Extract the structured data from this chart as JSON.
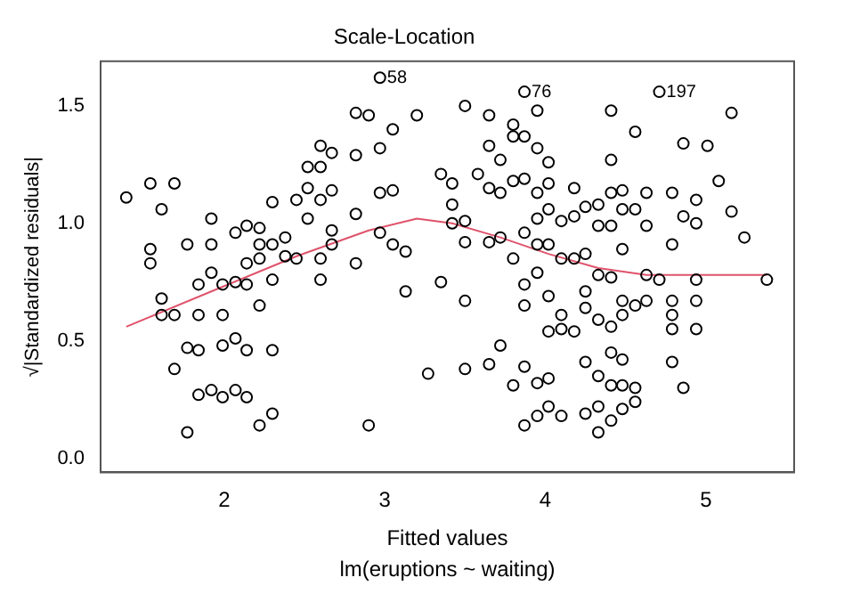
{
  "chart_data": {
    "type": "scatter",
    "title": "Scale-Location",
    "xlabel": "Fitted values",
    "ylabel": "√|Standardized residuals|",
    "xlim": [
      1.23,
      5.55
    ],
    "xticks": [
      2,
      3,
      4,
      5
    ],
    "ylim": [
      -0.06,
      1.69
    ],
    "yticks": [
      {
        "value": 0,
        "label": "0.0"
      },
      {
        "value": 0.5,
        "label": "0.5"
      },
      {
        "value": 1,
        "label": "1.0"
      },
      {
        "value": 1.5,
        "label": "1.5"
      }
    ],
    "grid": false,
    "legend": false,
    "marker": "circle",
    "annotations": [
      "lm(eruptions ~ waiting)",
      {
        "text": "58",
        "x": 2.97,
        "y": 1.62
      },
      {
        "text": "76",
        "x": 3.87,
        "y": 1.56
      },
      {
        "text": "197",
        "x": 4.71,
        "y": 1.56
      }
    ],
    "series": [
      {
        "color": "#000000",
        "x": [
          1.39,
          1.54,
          1.69,
          1.61,
          1.54,
          1.54,
          1.61,
          1.61,
          1.69,
          1.77,
          1.77,
          1.77,
          1.69,
          1.84,
          1.84,
          1.84,
          1.84,
          1.92,
          1.92,
          1.92,
          1.92,
          1.99,
          1.99,
          1.99,
          1.99,
          2.07,
          2.07,
          2.07,
          2.07,
          2.14,
          2.14,
          2.14,
          2.14,
          2.14,
          2.22,
          2.22,
          2.22,
          2.22,
          2.22,
          2.3,
          2.3,
          2.3,
          2.3,
          2.3,
          2.38,
          2.38,
          2.45,
          2.45,
          2.52,
          2.52,
          2.52,
          2.6,
          2.6,
          2.6,
          2.6,
          2.6,
          2.67,
          2.67,
          2.67,
          2.67,
          2.82,
          2.82,
          2.82,
          2.82,
          2.9,
          2.9,
          2.97,
          2.97,
          2.97,
          2.97,
          3.05,
          3.2,
          3.05,
          3.05,
          3.13,
          3.13,
          3.27,
          3.35,
          3.35,
          3.42,
          3.42,
          3.42,
          3.5,
          3.5,
          3.5,
          3.5,
          3.5,
          3.58,
          3.65,
          3.65,
          3.65,
          3.65,
          3.65,
          3.72,
          3.72,
          3.72,
          3.72,
          3.8,
          3.8,
          3.8,
          3.8,
          3.8,
          3.87,
          3.87,
          3.87,
          3.87,
          3.87,
          3.87,
          3.87,
          3.87,
          3.95,
          3.95,
          3.95,
          3.95,
          3.95,
          3.95,
          3.95,
          3.95,
          4.02,
          4.02,
          4.02,
          4.02,
          4.02,
          4.02,
          4.02,
          4.02,
          4.1,
          4.1,
          4.1,
          4.1,
          4.1,
          4.18,
          4.18,
          4.18,
          4.18,
          4.25,
          4.25,
          4.25,
          4.25,
          4.25,
          4.25,
          4.33,
          4.33,
          4.33,
          4.33,
          4.33,
          4.33,
          4.33,
          4.41,
          4.41,
          4.41,
          4.41,
          4.41,
          4.41,
          4.41,
          4.41,
          4.41,
          4.71,
          4.56,
          4.86,
          5.01,
          5.16,
          5.08,
          5.16,
          5.24,
          5.38,
          4.48,
          4.63,
          4.79,
          4.94,
          4.48,
          4.56,
          4.63,
          4.79,
          4.86,
          4.94,
          4.48,
          4.63,
          4.71,
          4.94,
          4.48,
          4.56,
          4.63,
          4.79,
          4.79,
          4.94,
          4.94,
          4.79,
          4.48,
          4.48,
          4.79,
          4.86,
          4.48,
          4.56,
          4.56,
          4.48
        ],
        "values": [
          1.11,
          1.17,
          1.17,
          1.06,
          0.89,
          0.83,
          0.68,
          0.61,
          0.61,
          0.91,
          0.47,
          0.11,
          0.38,
          0.74,
          0.61,
          0.46,
          0.27,
          1.02,
          0.91,
          0.79,
          0.29,
          0.74,
          0.61,
          0.48,
          0.26,
          0.96,
          0.75,
          0.51,
          0.29,
          0.99,
          0.83,
          0.74,
          0.46,
          0.26,
          0.98,
          0.91,
          0.85,
          0.65,
          0.14,
          1.09,
          0.91,
          0.76,
          0.46,
          0.19,
          0.94,
          0.86,
          1.1,
          0.85,
          1.24,
          1.15,
          1.02,
          1.33,
          1.24,
          1.1,
          0.85,
          0.76,
          1.3,
          1.14,
          0.97,
          0.91,
          1.47,
          1.29,
          1.04,
          0.83,
          1.46,
          0.14,
          1.62,
          1.32,
          1.13,
          0.96,
          1.4,
          1.46,
          1.14,
          0.91,
          0.88,
          0.71,
          0.36,
          1.21,
          0.75,
          1.17,
          1.08,
          1.0,
          1.5,
          1.01,
          0.92,
          0.67,
          0.38,
          1.21,
          1.46,
          1.33,
          1.15,
          0.92,
          0.4,
          1.27,
          1.13,
          0.94,
          0.48,
          1.42,
          1.37,
          1.18,
          0.85,
          0.31,
          1.56,
          1.37,
          1.19,
          0.96,
          0.74,
          0.65,
          0.39,
          0.14,
          1.48,
          1.32,
          1.13,
          1.02,
          0.91,
          0.79,
          0.32,
          0.18,
          1.26,
          1.17,
          1.06,
          0.91,
          0.69,
          0.54,
          0.34,
          0.22,
          1.01,
          0.85,
          0.61,
          0.55,
          0.18,
          1.15,
          1.03,
          0.85,
          0.54,
          1.07,
          0.87,
          0.71,
          0.64,
          0.41,
          0.19,
          1.08,
          0.99,
          0.78,
          0.59,
          0.35,
          0.22,
          0.11,
          1.48,
          1.27,
          1.13,
          0.99,
          0.77,
          0.56,
          0.45,
          0.31,
          0.16,
          1.56,
          1.39,
          1.34,
          1.33,
          1.47,
          1.18,
          1.05,
          0.94,
          0.76,
          1.14,
          1.13,
          1.13,
          1.1,
          1.06,
          1.06,
          0.99,
          0.91,
          1.03,
          1.0,
          0.89,
          0.78,
          0.76,
          0.76,
          0.67,
          0.65,
          0.67,
          0.67,
          0.61,
          0.67,
          0.55,
          0.55,
          0.61,
          0.42,
          0.41,
          0.3,
          0.31,
          0.3,
          0.24,
          0.21
        ]
      },
      {
        "type": "line",
        "color": "#df536b",
        "marker": "none",
        "x": [
          1.39,
          1.99,
          2.45,
          2.9,
          3.2,
          3.42,
          3.72,
          4.02,
          4.33,
          4.63,
          5.38
        ],
        "values": [
          0.56,
          0.73,
          0.86,
          0.97,
          1.02,
          1.0,
          0.94,
          0.87,
          0.81,
          0.78,
          0.78
        ]
      }
    ]
  }
}
